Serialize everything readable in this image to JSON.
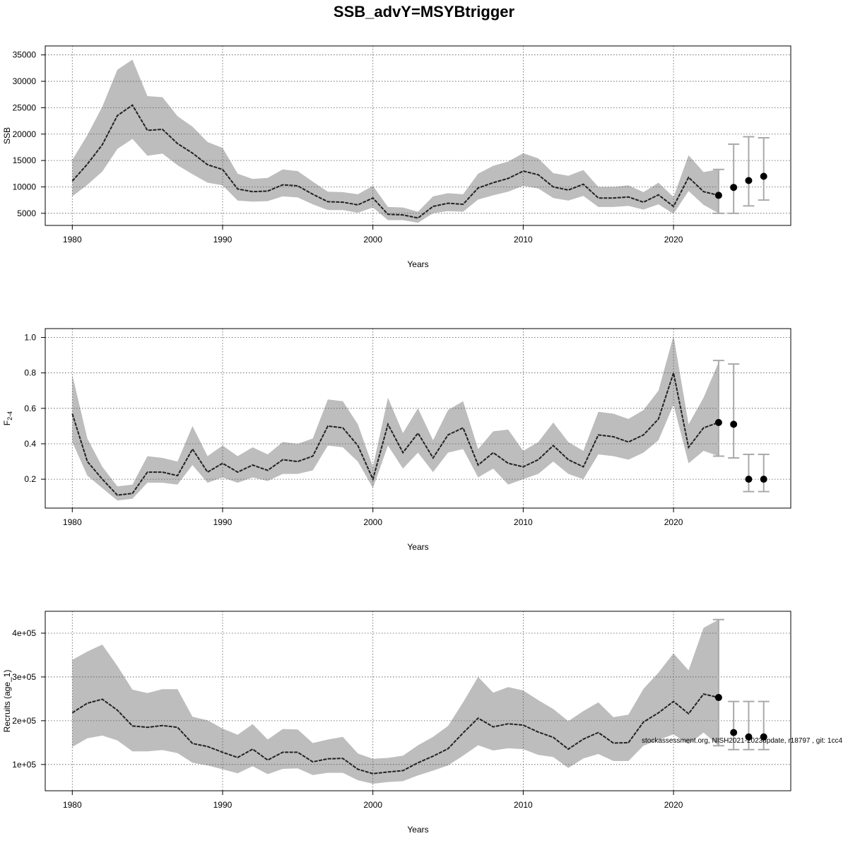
{
  "figure": {
    "title": "SSB_advY=MSYBtrigger",
    "watermark": "stockassessment.org, NISH2021-2023update, r18797 , git: 1cc4"
  },
  "colors": {
    "band": "#bdbdbd",
    "line": "#222222",
    "errorbar": "#aaaaaa",
    "point": "#000000"
  },
  "chart_data": [
    {
      "type": "line",
      "title": "",
      "xlabel": "Years",
      "ylabel": "SSB",
      "xlim": [
        1978.2,
        2027.8
      ],
      "ylim": [
        2700,
        36700
      ],
      "grid": true,
      "x_ticks": [
        1980,
        1990,
        2000,
        2010,
        2020
      ],
      "y_ticks": [
        5000,
        10000,
        15000,
        20000,
        25000,
        30000,
        35000
      ],
      "x_tick_labels": [
        "1980",
        "1990",
        "2000",
        "2010",
        "2020"
      ],
      "y_tick_labels": [
        "5000",
        "10000",
        "15000",
        "20000",
        "25000",
        "30000",
        "35000"
      ],
      "years": [
        1980,
        1981,
        1982,
        1983,
        1984,
        1985,
        1986,
        1987,
        1988,
        1989,
        1990,
        1991,
        1992,
        1993,
        1994,
        1995,
        1996,
        1997,
        1998,
        1999,
        2000,
        2001,
        2002,
        2003,
        2004,
        2005,
        2006,
        2007,
        2008,
        2009,
        2010,
        2011,
        2012,
        2013,
        2014,
        2015,
        2016,
        2017,
        2018,
        2019,
        2020,
        2021,
        2022,
        2023
      ],
      "estimate": [
        11100,
        14300,
        18000,
        23500,
        25500,
        20700,
        20900,
        18200,
        16400,
        14200,
        13300,
        9600,
        9100,
        9200,
        10400,
        10200,
        8600,
        7200,
        7100,
        6600,
        7900,
        4800,
        4700,
        4100,
        6300,
        6900,
        6700,
        9800,
        10800,
        11600,
        13000,
        12300,
        10000,
        9400,
        10500,
        7900,
        7900,
        8100,
        7100,
        8500,
        6300,
        11800,
        9100,
        8400
      ],
      "lower": [
        8200,
        10400,
        12900,
        17200,
        19100,
        15900,
        16300,
        14100,
        12400,
        10800,
        10300,
        7400,
        7200,
        7300,
        8200,
        8000,
        6700,
        5600,
        5600,
        5100,
        6100,
        3700,
        3700,
        3200,
        5000,
        5400,
        5300,
        7600,
        8400,
        9100,
        10200,
        9700,
        7900,
        7400,
        8300,
        6200,
        6200,
        6400,
        5700,
        6700,
        4900,
        9200,
        6600,
        5000
      ],
      "upper": [
        15100,
        19800,
        25200,
        32200,
        34100,
        27200,
        27000,
        23400,
        21400,
        18500,
        17400,
        12500,
        11500,
        11700,
        13300,
        13000,
        11000,
        9100,
        9000,
        8600,
        10200,
        6200,
        6100,
        5300,
        8200,
        8800,
        8600,
        12500,
        14000,
        14800,
        16400,
        15400,
        12600,
        12100,
        13200,
        10000,
        10000,
        10300,
        9000,
        10800,
        8100,
        16000,
        12800,
        13300
      ],
      "projection": [
        {
          "year": 2023,
          "value": 8400,
          "lower": 5000,
          "upper": 13300
        },
        {
          "year": 2024,
          "value": 9900,
          "lower": 5000,
          "upper": 18100
        },
        {
          "year": 2025,
          "value": 11200,
          "lower": 6400,
          "upper": 19500
        },
        {
          "year": 2026,
          "value": 12000,
          "lower": 7500,
          "upper": 19300
        }
      ]
    },
    {
      "type": "line",
      "title": "",
      "xlabel": "Years",
      "ylabel": "F",
      "ylabel_subscript": "2-4",
      "xlim": [
        1978.2,
        2027.8
      ],
      "ylim": [
        0.037,
        1.05
      ],
      "grid": true,
      "x_ticks": [
        1980,
        1990,
        2000,
        2010,
        2020
      ],
      "y_ticks": [
        0.2,
        0.4,
        0.6,
        0.8,
        1.0
      ],
      "x_tick_labels": [
        "1980",
        "1990",
        "2000",
        "2010",
        "2020"
      ],
      "y_tick_labels": [
        "0.2",
        "0.4",
        "0.6",
        "0.8",
        "1.0"
      ],
      "years": [
        1980,
        1981,
        1982,
        1983,
        1984,
        1985,
        1986,
        1987,
        1988,
        1989,
        1990,
        1991,
        1992,
        1993,
        1994,
        1995,
        1996,
        1997,
        1998,
        1999,
        2000,
        2001,
        2002,
        2003,
        2004,
        2005,
        2006,
        2007,
        2008,
        2009,
        2010,
        2011,
        2012,
        2013,
        2014,
        2015,
        2016,
        2017,
        2018,
        2019,
        2020,
        2021,
        2022,
        2023
      ],
      "estimate": [
        0.57,
        0.3,
        0.2,
        0.11,
        0.12,
        0.24,
        0.24,
        0.22,
        0.37,
        0.24,
        0.29,
        0.24,
        0.28,
        0.25,
        0.31,
        0.3,
        0.33,
        0.5,
        0.49,
        0.39,
        0.2,
        0.51,
        0.35,
        0.46,
        0.32,
        0.45,
        0.49,
        0.28,
        0.35,
        0.29,
        0.27,
        0.31,
        0.39,
        0.31,
        0.27,
        0.45,
        0.44,
        0.41,
        0.45,
        0.54,
        0.8,
        0.38,
        0.49,
        0.52
      ],
      "lower": [
        0.41,
        0.22,
        0.15,
        0.08,
        0.09,
        0.18,
        0.18,
        0.17,
        0.28,
        0.18,
        0.21,
        0.18,
        0.21,
        0.19,
        0.23,
        0.23,
        0.25,
        0.39,
        0.38,
        0.3,
        0.15,
        0.39,
        0.26,
        0.35,
        0.24,
        0.35,
        0.37,
        0.21,
        0.26,
        0.17,
        0.2,
        0.23,
        0.3,
        0.23,
        0.2,
        0.34,
        0.33,
        0.31,
        0.35,
        0.42,
        0.62,
        0.29,
        0.36,
        0.33
      ],
      "upper": [
        0.79,
        0.43,
        0.27,
        0.16,
        0.17,
        0.33,
        0.32,
        0.3,
        0.5,
        0.33,
        0.39,
        0.33,
        0.38,
        0.34,
        0.41,
        0.4,
        0.43,
        0.65,
        0.64,
        0.51,
        0.27,
        0.66,
        0.46,
        0.6,
        0.42,
        0.59,
        0.64,
        0.37,
        0.47,
        0.48,
        0.36,
        0.41,
        0.52,
        0.41,
        0.36,
        0.58,
        0.57,
        0.54,
        0.59,
        0.7,
        1.01,
        0.51,
        0.66,
        0.86
      ],
      "projection": [
        {
          "year": 2023,
          "value": 0.52,
          "lower": 0.33,
          "upper": 0.87
        },
        {
          "year": 2024,
          "value": 0.51,
          "lower": 0.32,
          "upper": 0.85
        },
        {
          "year": 2025,
          "value": 0.2,
          "lower": 0.13,
          "upper": 0.34
        },
        {
          "year": 2026,
          "value": 0.2,
          "lower": 0.13,
          "upper": 0.34
        }
      ]
    },
    {
      "type": "line",
      "title": "",
      "xlabel": "Years",
      "ylabel": "Recruits (age_1)",
      "xlim": [
        1978.2,
        2027.8
      ],
      "ylim": [
        40000,
        450000
      ],
      "grid": true,
      "x_ticks": [
        1980,
        1990,
        2000,
        2010,
        2020
      ],
      "y_ticks": [
        100000,
        200000,
        300000,
        400000
      ],
      "x_tick_labels": [
        "1980",
        "1990",
        "2000",
        "2010",
        "2020"
      ],
      "y_tick_labels": [
        "1e+05",
        "2e+05",
        "3e+05",
        "4e+05"
      ],
      "years": [
        1980,
        1981,
        1982,
        1983,
        1984,
        1985,
        1986,
        1987,
        1988,
        1989,
        1990,
        1991,
        1992,
        1993,
        1994,
        1995,
        1996,
        1997,
        1998,
        1999,
        2000,
        2001,
        2002,
        2003,
        2004,
        2005,
        2006,
        2007,
        2008,
        2009,
        2010,
        2011,
        2012,
        2013,
        2014,
        2015,
        2016,
        2017,
        2018,
        2019,
        2020,
        2021,
        2022,
        2023
      ],
      "estimate": [
        218000,
        240000,
        249000,
        224000,
        188000,
        185000,
        189000,
        185000,
        148000,
        141000,
        128000,
        116000,
        135000,
        110000,
        128000,
        128000,
        106000,
        113000,
        114000,
        89000,
        79000,
        83000,
        86000,
        104000,
        119000,
        136000,
        172000,
        206000,
        186000,
        193000,
        190000,
        174000,
        162000,
        135000,
        158000,
        173000,
        149000,
        150000,
        197000,
        218000,
        244000,
        216000,
        261000,
        253000
      ],
      "lower": [
        140000,
        160000,
        166000,
        155000,
        130000,
        130000,
        133000,
        126000,
        104000,
        98000,
        89000,
        80000,
        96000,
        78000,
        90000,
        91000,
        76000,
        81000,
        81000,
        64000,
        56000,
        60000,
        62000,
        75000,
        86000,
        98000,
        120000,
        144000,
        132000,
        137000,
        135000,
        122000,
        117000,
        92000,
        114000,
        124000,
        108000,
        108000,
        143000,
        156000,
        169000,
        146000,
        173000,
        143000
      ],
      "upper": [
        339000,
        358000,
        374000,
        325000,
        271000,
        263000,
        272000,
        272000,
        209000,
        201000,
        182000,
        168000,
        192000,
        157000,
        181000,
        180000,
        149000,
        157000,
        163000,
        125000,
        113000,
        115000,
        120000,
        144000,
        163000,
        188000,
        242000,
        300000,
        264000,
        277000,
        269000,
        247000,
        227000,
        199000,
        222000,
        242000,
        208000,
        214000,
        273000,
        310000,
        354000,
        315000,
        412000,
        431000
      ],
      "projection": [
        {
          "year": 2023,
          "value": 253000,
          "lower": 143000,
          "upper": 431000
        },
        {
          "year": 2024,
          "value": 173000,
          "lower": 134000,
          "upper": 244000
        },
        {
          "year": 2025,
          "value": 163000,
          "lower": 134000,
          "upper": 244000
        },
        {
          "year": 2026,
          "value": 163000,
          "lower": 134000,
          "upper": 244000
        }
      ]
    }
  ]
}
